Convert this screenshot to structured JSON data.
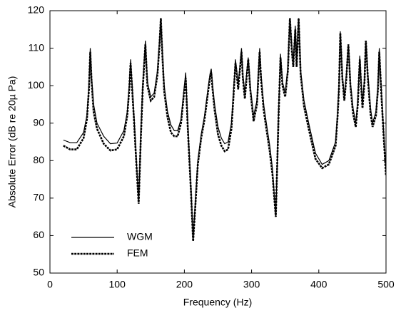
{
  "chart_data": {
    "type": "line",
    "xlabel": "Frequency  (Hz)",
    "ylabel": "Absolute Error (dB re 20µ Pa)",
    "x": [
      20,
      30,
      40,
      50,
      55,
      58,
      60,
      62,
      65,
      70,
      80,
      90,
      100,
      110,
      115,
      118,
      120,
      122,
      125,
      128,
      132,
      135,
      138,
      142,
      145,
      150,
      155,
      160,
      163,
      165,
      167,
      170,
      175,
      180,
      185,
      190,
      195,
      200,
      202,
      205,
      210,
      213,
      216,
      220,
      225,
      230,
      235,
      238,
      240,
      242,
      245,
      250,
      255,
      260,
      265,
      270,
      273,
      276,
      278,
      280,
      283,
      285,
      287,
      290,
      293,
      295,
      298,
      303,
      308,
      310,
      312,
      314,
      318,
      322,
      327,
      331,
      336,
      340,
      343,
      346,
      350,
      354,
      357,
      360,
      362,
      365,
      367,
      370,
      373,
      378,
      385,
      395,
      405,
      415,
      425,
      428,
      430,
      432,
      435,
      438,
      441,
      444,
      447,
      451,
      455,
      458,
      461,
      463,
      465,
      468,
      470,
      473,
      477,
      480,
      485,
      488,
      490,
      493,
      497,
      500
    ],
    "series": [
      {
        "name": "WGM",
        "color": "#000000",
        "style": "solid",
        "values": [
          85.5,
          84.8,
          84.8,
          87.5,
          92,
          100,
          110,
          102,
          95,
          90,
          86.5,
          84.5,
          84.7,
          88,
          93,
          100,
          107,
          101,
          92,
          82,
          69,
          86,
          100,
          112,
          101,
          97,
          98,
          104,
          112,
          118,
          110,
          100,
          93,
          89.5,
          88,
          88,
          91,
          100,
          103.5,
          90,
          72,
          59,
          68,
          80,
          87,
          92,
          99,
          103,
          104.5,
          100,
          95,
          89,
          86,
          84.5,
          85,
          90,
          98,
          107,
          104,
          100,
          106,
          110,
          103,
          98,
          104,
          107.5,
          100,
          92,
          96,
          103,
          110,
          103,
          95,
          90,
          84,
          78,
          65,
          92,
          108.5,
          101,
          98,
          105,
          118,
          110,
          106,
          116,
          106,
          118,
          104,
          96,
          90,
          82,
          79,
          80,
          85,
          93,
          100,
          114.5,
          103,
          97,
          103,
          111,
          101,
          94,
          90,
          96,
          108,
          101,
          95,
          102,
          112,
          103,
          94,
          90,
          93,
          100,
          110,
          99,
          86,
          77
        ]
      },
      {
        "name": "FEM",
        "color": "#000000",
        "style": "dashed",
        "values": [
          84,
          83,
          83,
          86,
          91,
          99,
          109,
          101,
          93,
          88.5,
          84.5,
          82.7,
          83,
          86.5,
          92,
          99,
          106,
          100,
          91,
          81,
          68.5,
          85,
          99,
          111,
          100,
          96,
          97,
          103,
          111,
          118,
          109,
          98.5,
          91.5,
          87.5,
          86.5,
          86.5,
          90,
          99,
          102,
          89,
          71,
          58.5,
          67,
          79,
          86,
          91,
          98,
          102,
          103.5,
          99,
          93.5,
          87,
          84,
          82.5,
          83,
          88.5,
          97,
          106,
          103,
          99,
          105,
          109,
          102,
          96.5,
          103,
          107,
          99,
          90.5,
          95,
          102,
          109,
          102,
          93.5,
          88.5,
          82.5,
          76.5,
          65,
          91,
          107.5,
          100,
          97,
          104,
          118,
          109,
          105,
          115,
          105,
          118,
          103,
          94.5,
          88.5,
          80.5,
          78,
          79,
          84,
          92,
          99,
          114,
          102,
          96,
          102,
          111,
          100,
          92.5,
          89,
          95,
          107,
          100,
          94,
          101,
          112,
          102,
          92.5,
          89,
          92,
          99,
          109,
          98,
          85,
          76
        ]
      }
    ],
    "xlim": [
      0,
      500
    ],
    "xticks": [
      0,
      100,
      200,
      300,
      400,
      500
    ],
    "ylim": [
      50,
      120
    ],
    "yticks": [
      50,
      60,
      70,
      80,
      90,
      100,
      110,
      120
    ],
    "grid": false,
    "legend": "lower left"
  }
}
